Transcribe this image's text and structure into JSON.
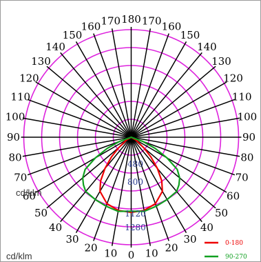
{
  "chart_data": {
    "type": "polar",
    "unit": "cd/klm",
    "unit_label_inner": "cd/klm",
    "angle_labels": [
      "180",
      "170",
      "160",
      "150",
      "140",
      "130",
      "120",
      "110",
      "100",
      "90",
      "80",
      "70",
      "60",
      "50",
      "40",
      "30",
      "20",
      "10",
      "0",
      "10",
      "20",
      "30",
      "40",
      "50",
      "60",
      "70",
      "80",
      "90",
      "100",
      "110",
      "120",
      "130",
      "140",
      "150",
      "160",
      "170"
    ],
    "radial_max": 1280,
    "radial_rings": [
      320,
      640,
      960,
      1280,
      1600,
      1920
    ],
    "ring_labels": [
      "480",
      "800",
      "1120",
      "1280"
    ],
    "series": [
      {
        "name": "0-180",
        "color": "#ee0000",
        "angles": [
          0,
          10,
          20,
          30,
          35,
          40,
          45,
          50,
          60
        ],
        "values": [
          1270,
          1255,
          1195,
          1055,
          900,
          690,
          470,
          280,
          90
        ]
      },
      {
        "name": "90-270",
        "color": "#10a020",
        "angles": [
          0,
          10,
          20,
          30,
          40,
          45,
          50,
          55,
          60,
          65,
          70
        ],
        "values": [
          1250,
          1270,
          1240,
          1215,
          1195,
          1140,
          1070,
          950,
          700,
          450,
          210
        ]
      }
    ],
    "ring_color": "#dd22dd"
  }
}
